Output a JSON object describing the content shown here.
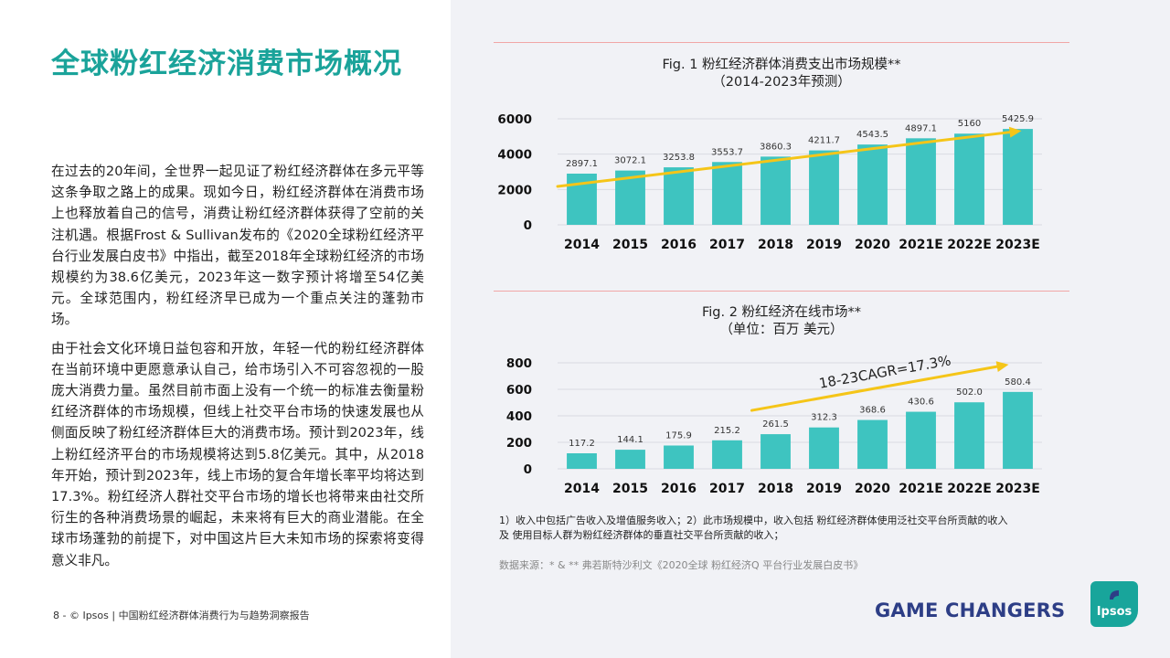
{
  "header": {
    "title": "全球粉红经济消费市场概况"
  },
  "body": {
    "paragraphs": [
      "在过去的20年间，全世界一起见证了粉红经济群体在多元平等这条争取之路上的成果。现如今日，粉红经济群体在消费市场上也释放着自己的信号，消费让粉红经济群体获得了空前的关注机遇。根据Frost & Sullivan发布的《2020全球粉红经济平台行业发展白皮书》中指出，截至2018年全球粉红经济的市场规模约为38.6亿美元，2023年这一数字预计将增至54亿美元。全球范围内，粉红经济早已成为一个重点关注的蓬勃市场。",
      "由于社会文化环境日益包容和开放，年轻一代的粉红经济群体在当前环境中更愿意承认自己，给市场引入不可容忽视的一股庞大消费力量。虽然目前市面上没有一个统一的标准去衡量粉红经济群体的市场规模，但线上社交平台市场的快速发展也从侧面反映了粉红经济群体巨大的消费市场。预计到2023年，线上粉红经济平台的市场规模将达到5.8亿美元。其中，从2018年开始，预计到2023年，线上市场的复合年增长率平均将达到17.3%。粉红经济人群社交平台市场的增长也将带来由社交所衍生的各种消费场景的崛起，未来将有巨大的商业潜能。在全球市场蓬勃的前提下，对中国这片巨大未知市场的探索将变得意义非凡。"
    ]
  },
  "footer": {
    "text": "8  -  © Ipsos  |   中国粉红经济群体消费行为与趋势洞察报告"
  },
  "branding": {
    "tagline": "GAME CHANGERS",
    "logo": "Ipsos",
    "accent": "#1aa39a",
    "bar_color": "#3ec4c0",
    "trend_color": "#f5c518",
    "tagline_color": "#2d3e86"
  },
  "chart_data": [
    {
      "type": "bar",
      "title": "Fig. 1 粉红经济群体消费支出市场规模**",
      "subtitle": "（2014-2023年预测）",
      "categories": [
        "2014",
        "2015",
        "2016",
        "2017",
        "2018",
        "2019",
        "2020",
        "2021E",
        "2022E",
        "2023E"
      ],
      "values": [
        2897.1,
        3072.1,
        3253.8,
        3553.7,
        3860.3,
        4211.7,
        4543.5,
        4897.1,
        5160,
        5425.9
      ],
      "value_labels": [
        "2897.1",
        "3072.1",
        "3253.8",
        "3553.7",
        "3860.3",
        "4211.7",
        "4543.5",
        "4897.1",
        "5160",
        "5425.9"
      ],
      "yticks": [
        "0",
        "2000",
        "4000",
        "6000"
      ],
      "ylim": [
        0,
        6000
      ],
      "trend": {
        "from": 0,
        "to": 9
      },
      "grid": true
    },
    {
      "type": "bar",
      "title": "Fig. 2 粉红经济在线市场**",
      "subtitle": "（单位：百万 美元）",
      "categories": [
        "2014",
        "2015",
        "2016",
        "2017",
        "2018",
        "2019",
        "2020",
        "2021E",
        "2022E",
        "2023E"
      ],
      "values": [
        117.2,
        144.1,
        175.9,
        215.2,
        261.5,
        312.3,
        368.6,
        430.6,
        502.0,
        580.4
      ],
      "value_labels": [
        "117.2",
        "144.1",
        "175.9",
        "215.2",
        "261.5",
        "312.3",
        "368.6",
        "430.6",
        "502.0",
        "580.4"
      ],
      "yticks": [
        "0",
        "200",
        "400",
        "600",
        "800"
      ],
      "ylim": [
        0,
        800
      ],
      "trend": {
        "from": 4,
        "to": 9
      },
      "annotation": "18-23CAGR=17.3%",
      "grid": true
    }
  ],
  "notes": {
    "line1": "1）收入中包括广告收入及增值服务收入；2）此市场规模中，收入包括 粉红经济群体使用泛社交平台所贡献的收入",
    "line2": "及 使用目标人群为粉红经济群体的垂直社交平台所贡献的收入；",
    "source": "数据来源：* & ** 弗若斯特沙利文《2020全球 粉红经济Q 平台行业发展白皮书》"
  }
}
